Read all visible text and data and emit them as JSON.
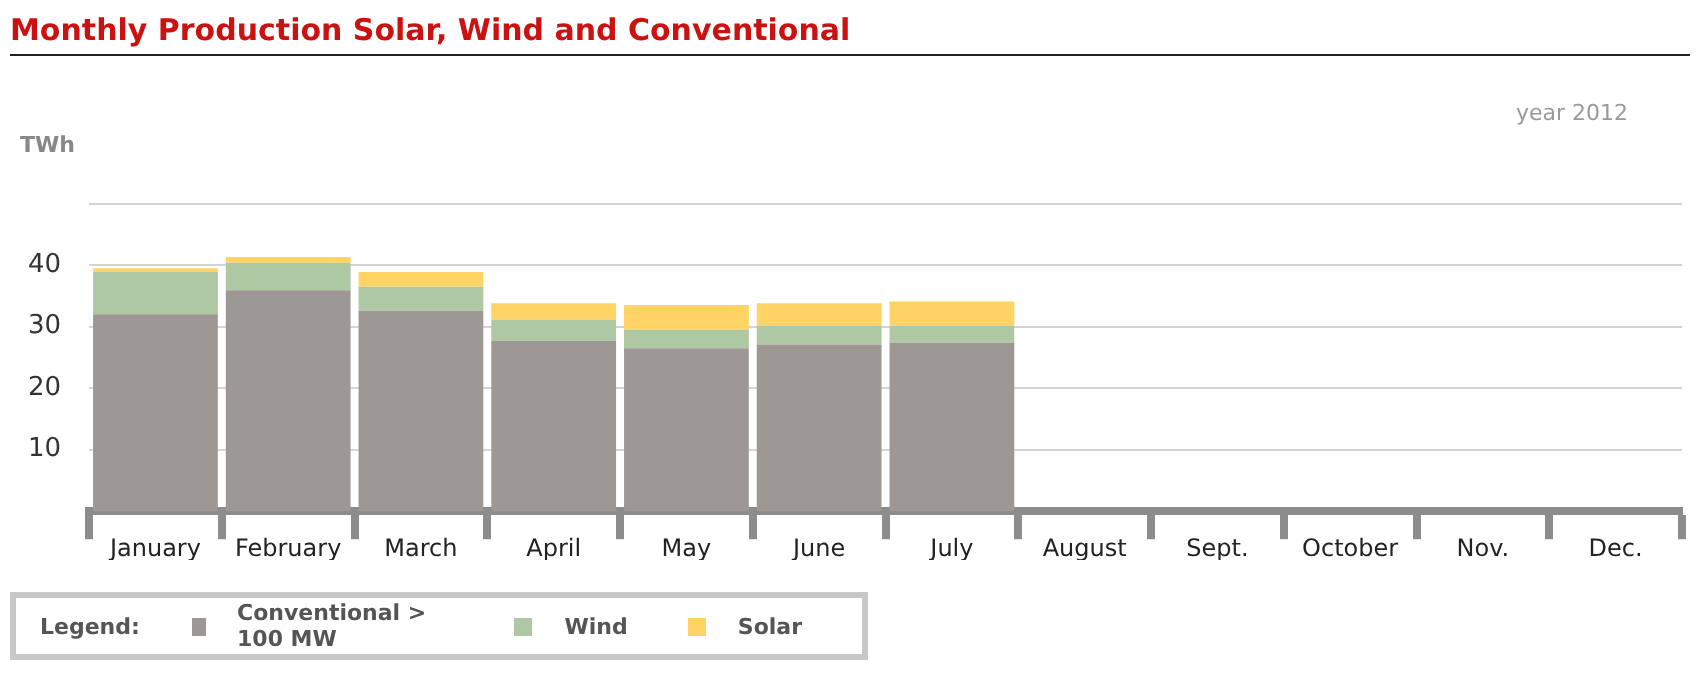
{
  "chart_data": {
    "type": "bar",
    "title": "Monthly Production Solar, Wind and Conventional",
    "ylabel": "TWh",
    "legend_title": "Legend:",
    "annotations": [
      "year 2012"
    ],
    "categories": [
      "January",
      "February",
      "March",
      "April",
      "May",
      "June",
      "July",
      "August",
      "Sept.",
      "October",
      "Nov.",
      "Dec."
    ],
    "stacked": true,
    "series": [
      {
        "name": "Conventional > 100 MW",
        "color": "#9d9893",
        "values": [
          32.0,
          35.9,
          32.6,
          27.7,
          26.5,
          27.1,
          27.4,
          null,
          null,
          null,
          null,
          null
        ]
      },
      {
        "name": "Wind",
        "color": "#adc8a3",
        "values": [
          6.9,
          4.5,
          3.9,
          3.4,
          3.0,
          3.1,
          2.8,
          null,
          null,
          null,
          null,
          null
        ]
      },
      {
        "name": "Solar",
        "color": "#ffd464",
        "values": [
          0.6,
          0.9,
          2.4,
          2.7,
          4.0,
          3.6,
          3.9,
          null,
          null,
          null,
          null,
          null
        ]
      }
    ],
    "ylim": [
      0,
      50
    ],
    "yticks": [
      10,
      20,
      30,
      40,
      {
        "value": 50,
        "label": null
      }
    ],
    "grid": "y",
    "legend": "bottom left"
  }
}
